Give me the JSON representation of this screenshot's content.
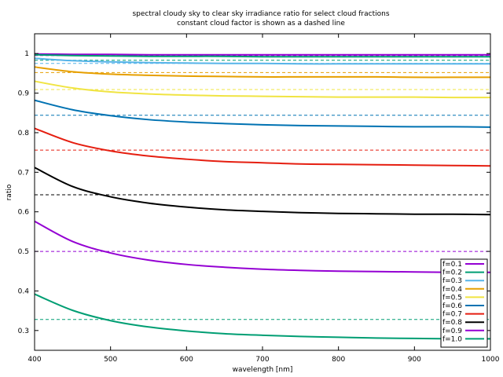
{
  "chart_data": {
    "type": "line",
    "title": "spectral cloudy sky to clear sky irradiance ratio for select cloud fractions",
    "subtitle": "constant cloud factor is shown as a dashed line",
    "xlabel": "wavelength [nm]",
    "ylabel": "ratio",
    "xlim": [
      400,
      1000
    ],
    "ylim": [
      0.25,
      1.05
    ],
    "x_ticks": [
      400,
      500,
      600,
      700,
      800,
      900,
      1000
    ],
    "y_ticks": [
      0.3,
      0.4,
      0.5,
      0.6,
      0.7,
      0.8,
      0.9,
      1.0
    ],
    "y_tick_labels": [
      "0.3",
      "0.4",
      "0.5",
      "0.6",
      "0.7",
      "0.8",
      "0.9",
      "1"
    ],
    "legend_position": "bottom-right",
    "grid": false,
    "x": [
      400,
      450,
      500,
      550,
      600,
      650,
      700,
      750,
      800,
      850,
      900,
      950,
      1000
    ],
    "series": [
      {
        "name": "f=0.1",
        "color": "#9400d3",
        "constant": 0.995,
        "values": [
          0.999,
          0.998,
          0.998,
          0.997,
          0.997,
          0.997,
          0.997,
          0.997,
          0.997,
          0.997,
          0.997,
          0.997,
          0.997
        ]
      },
      {
        "name": "f=0.2",
        "color": "#009e73",
        "constant": 0.983,
        "values": [
          0.997,
          0.995,
          0.994,
          0.993,
          0.993,
          0.993,
          0.992,
          0.992,
          0.992,
          0.992,
          0.992,
          0.992,
          0.992
        ]
      },
      {
        "name": "f=0.3",
        "color": "#56b4e9",
        "constant": 0.975,
        "values": [
          0.988,
          0.982,
          0.979,
          0.977,
          0.976,
          0.975,
          0.975,
          0.974,
          0.974,
          0.974,
          0.974,
          0.974,
          0.974
        ]
      },
      {
        "name": "f=0.4",
        "color": "#e69f00",
        "constant": 0.952,
        "values": [
          0.966,
          0.954,
          0.948,
          0.945,
          0.943,
          0.942,
          0.941,
          0.941,
          0.941,
          0.941,
          0.94,
          0.94,
          0.94
        ]
      },
      {
        "name": "f=0.5",
        "color": "#f0e442",
        "constant": 0.909,
        "values": [
          0.93,
          0.913,
          0.903,
          0.898,
          0.895,
          0.893,
          0.892,
          0.891,
          0.89,
          0.89,
          0.89,
          0.889,
          0.889
        ]
      },
      {
        "name": "f=0.6",
        "color": "#0072b2",
        "constant": 0.844,
        "values": [
          0.882,
          0.858,
          0.843,
          0.833,
          0.827,
          0.823,
          0.82,
          0.818,
          0.817,
          0.816,
          0.815,
          0.815,
          0.814
        ]
      },
      {
        "name": "f=0.7",
        "color": "#e51e10",
        "constant": 0.756,
        "values": [
          0.811,
          0.775,
          0.754,
          0.741,
          0.733,
          0.727,
          0.724,
          0.721,
          0.72,
          0.719,
          0.718,
          0.717,
          0.716
        ]
      },
      {
        "name": "f=0.8",
        "color": "#000000",
        "constant": 0.643,
        "values": [
          0.712,
          0.664,
          0.638,
          0.622,
          0.612,
          0.605,
          0.601,
          0.598,
          0.596,
          0.595,
          0.594,
          0.594,
          0.593
        ]
      },
      {
        "name": "f=0.9",
        "color": "#9400d3",
        "constant": 0.5,
        "values": [
          0.576,
          0.525,
          0.496,
          0.478,
          0.467,
          0.46,
          0.455,
          0.452,
          0.45,
          0.449,
          0.448,
          0.447,
          0.447
        ]
      },
      {
        "name": "f=1.0",
        "color": "#009e73",
        "constant": 0.328,
        "values": [
          0.392,
          0.351,
          0.325,
          0.309,
          0.299,
          0.292,
          0.288,
          0.285,
          0.283,
          0.281,
          0.28,
          0.279,
          0.279
        ]
      }
    ]
  }
}
